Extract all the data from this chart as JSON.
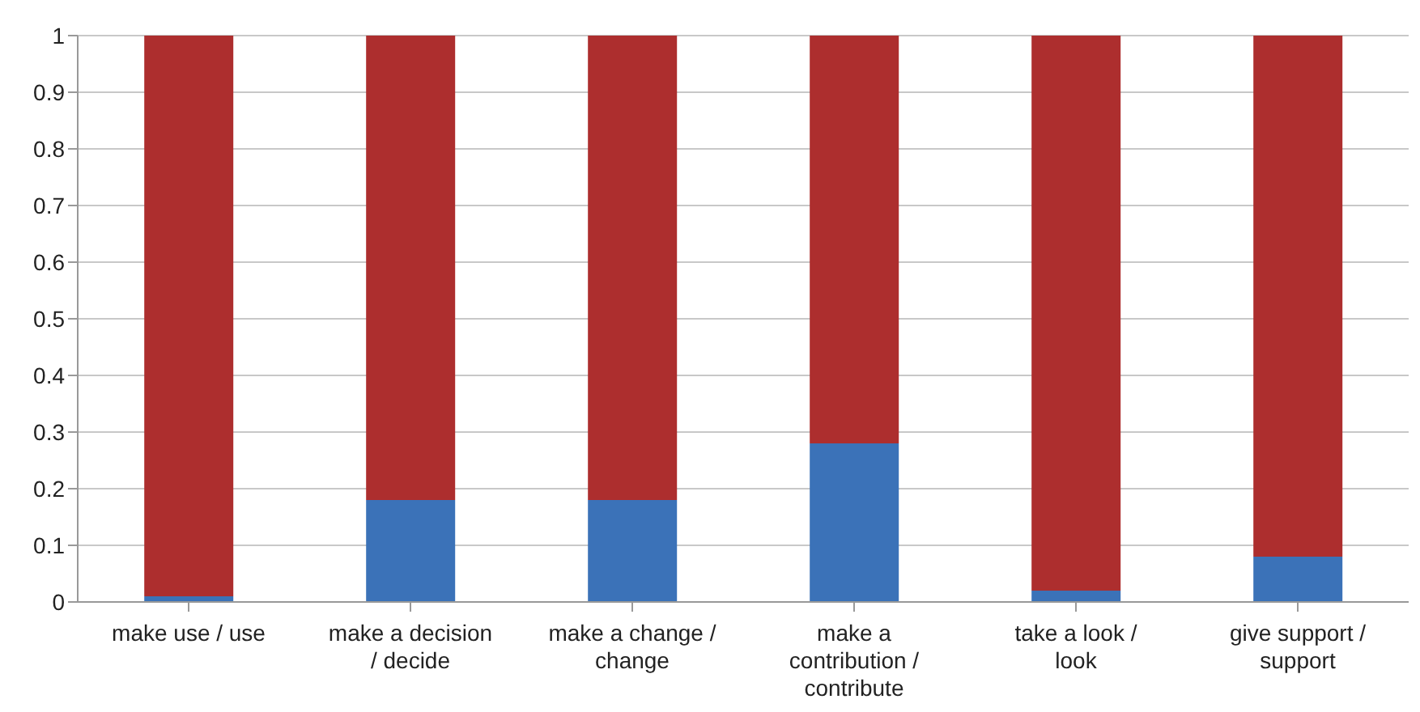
{
  "chart_data": {
    "type": "bar",
    "stacked": true,
    "categories": [
      "make use / use",
      "make a decision / decide",
      "make a change / change",
      "make a contribution / contribute",
      "take a look / look",
      "give support / support"
    ],
    "series": [
      {
        "color": "#3b72b8",
        "values": [
          0.01,
          0.18,
          0.18,
          0.28,
          0.02,
          0.08
        ]
      },
      {
        "color": "#ad2e2e",
        "values": [
          0.99,
          0.82,
          0.82,
          0.72,
          0.98,
          0.92
        ]
      }
    ],
    "ylim": [
      0,
      1
    ],
    "yticks": [
      0,
      0.1,
      0.2,
      0.3,
      0.4,
      0.5,
      0.6,
      0.7,
      0.8,
      0.9,
      1
    ],
    "grid": "y",
    "legend": false
  }
}
